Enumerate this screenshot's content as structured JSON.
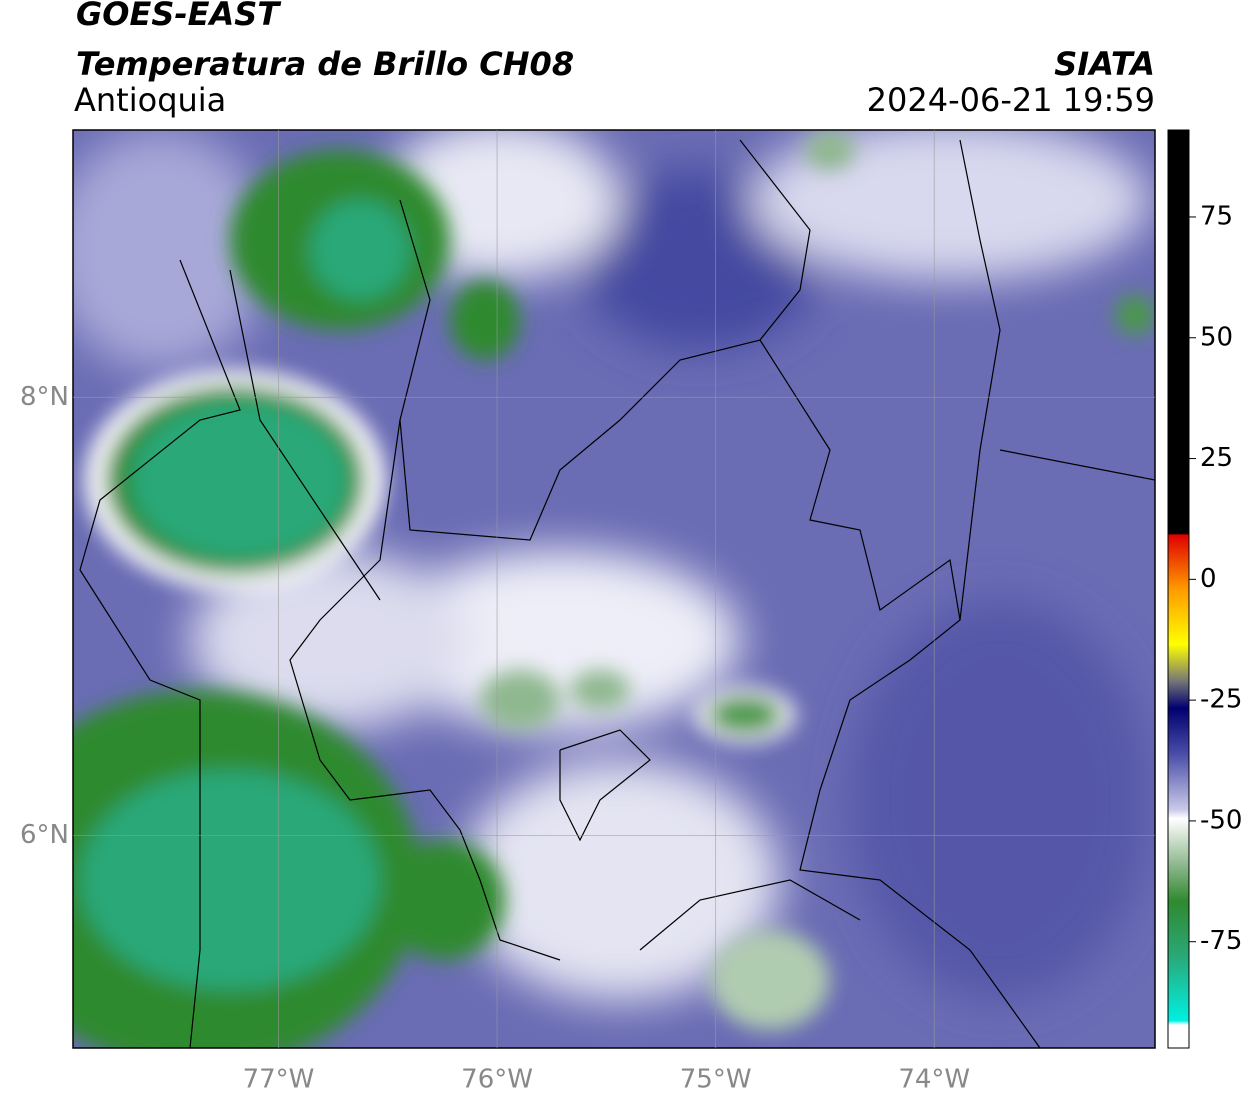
{
  "header": {
    "title": "GOES-EAST",
    "subtitle": "Temperatura de Brillo CH08",
    "region": "Antioquia",
    "source": "SIATA",
    "datetime": "2024-06-21 19:59"
  },
  "map": {
    "xlim": [
      -77.94,
      -72.99
    ],
    "ylim": [
      5.03,
      9.22
    ],
    "xticks": [
      {
        "value": -77,
        "label": "77°W"
      },
      {
        "value": -76,
        "label": "76°W"
      },
      {
        "value": -75,
        "label": "75°W"
      },
      {
        "value": -74,
        "label": "74°W"
      }
    ],
    "yticks": [
      {
        "value": 8,
        "label": "8°N"
      },
      {
        "value": 6,
        "label": "6°N"
      }
    ]
  },
  "colorbar": {
    "lim": [
      -97,
      93
    ],
    "ticks": [
      75,
      50,
      25,
      0,
      -25,
      -50,
      -75
    ]
  }
}
